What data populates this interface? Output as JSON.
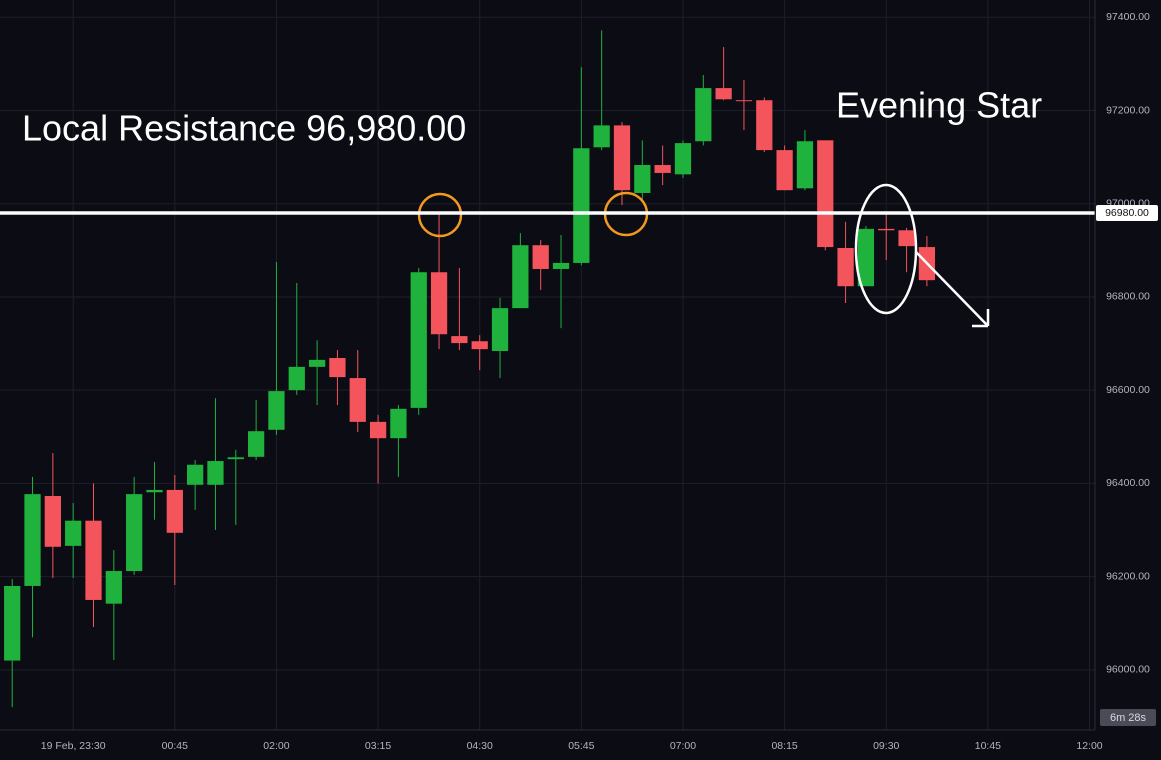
{
  "chart_data": {
    "type": "candlestick",
    "annotations": [
      "Local Resistance 96,980.00",
      "Evening Star"
    ],
    "resistance": {
      "value": 96980,
      "label": "96980.00"
    },
    "countdown": "6m 28s",
    "up_color": "#1fb23d",
    "down_color": "#f4545c",
    "grid": true,
    "xlim": [
      -0.6,
      53.27
    ],
    "xticks": [
      {
        "value": 3,
        "label": "19 Feb, 23:30"
      },
      {
        "value": 8,
        "label": "00:45"
      },
      {
        "value": 13,
        "label": "02:00"
      },
      {
        "value": 18,
        "label": "03:15"
      },
      {
        "value": 23,
        "label": "04:30"
      },
      {
        "value": 28,
        "label": "05:45"
      },
      {
        "value": 33,
        "label": "07:00"
      },
      {
        "value": 38,
        "label": "08:15"
      },
      {
        "value": 43,
        "label": "09:30"
      },
      {
        "value": 48,
        "label": "10:45"
      },
      {
        "value": 53,
        "label": "12:00"
      }
    ],
    "ylim": [
      95871,
      97437
    ],
    "yticks": [
      {
        "value": 96000,
        "label": "96000.00"
      },
      {
        "value": 96200,
        "label": "96200.00"
      },
      {
        "value": 96400,
        "label": "96400.00"
      },
      {
        "value": 96600,
        "label": "96600.00"
      },
      {
        "value": 96800,
        "label": "96800.00"
      },
      {
        "value": 97000,
        "label": "97000.00"
      },
      {
        "value": 97200,
        "label": "97200.00"
      },
      {
        "value": 97400,
        "label": "97400.00"
      }
    ],
    "open": [
      96020,
      96180,
      96373,
      96266,
      96320,
      96142,
      96212,
      96381,
      96386,
      96397,
      96397,
      96452,
      96457,
      96515,
      96600,
      96650,
      96669,
      96626,
      96532,
      96497,
      96562,
      96853,
      96716,
      96705,
      96684,
      96776,
      96911,
      96860,
      96873,
      97121,
      97168,
      97023,
      97083,
      97063,
      97134,
      97248,
      97222,
      97222,
      97115,
      97033,
      97136,
      96905,
      96823,
      96946,
      96943,
      96907
    ],
    "high": [
      96195,
      96414,
      96465,
      96358,
      96400,
      96257,
      96414,
      96446,
      96418,
      96450,
      96583,
      96472,
      96579,
      96875,
      96830,
      96707,
      96686,
      96686,
      96547,
      96568,
      96862,
      96980,
      96862,
      96718,
      96798,
      96937,
      96922,
      96933,
      97293,
      97372,
      97175,
      97136,
      97125,
      97136,
      97276,
      97336,
      97265,
      97228,
      97125,
      97158,
      97136,
      96961,
      96952,
      96980,
      96948,
      96931
    ],
    "low": [
      95920,
      96070,
      96197,
      96197,
      96092,
      96021,
      96204,
      96322,
      96182,
      96343,
      96300,
      96311,
      96450,
      96504,
      96590,
      96568,
      96568,
      96510,
      96400,
      96414,
      96547,
      96688,
      96686,
      96643,
      96626,
      96776,
      96815,
      96733,
      96868,
      97115,
      96997,
      97008,
      97040,
      97055,
      97125,
      97222,
      97158,
      97111,
      97029,
      97029,
      96900,
      96787,
      96823,
      96879,
      96853,
      96823
    ],
    "close": [
      96180,
      96377,
      96264,
      96320,
      96150,
      96212,
      96377,
      96386,
      96294,
      96440,
      96448,
      96456,
      96512,
      96598,
      96650,
      96665,
      96628,
      96532,
      96497,
      96560,
      96853,
      96720,
      96701,
      96688,
      96776,
      96911,
      96860,
      96873,
      97119,
      97168,
      97029,
      97083,
      97066,
      97130,
      97248,
      97224,
      97220,
      97115,
      97029,
      97134,
      96907,
      96823,
      96946,
      96943,
      96909,
      96836
    ]
  }
}
